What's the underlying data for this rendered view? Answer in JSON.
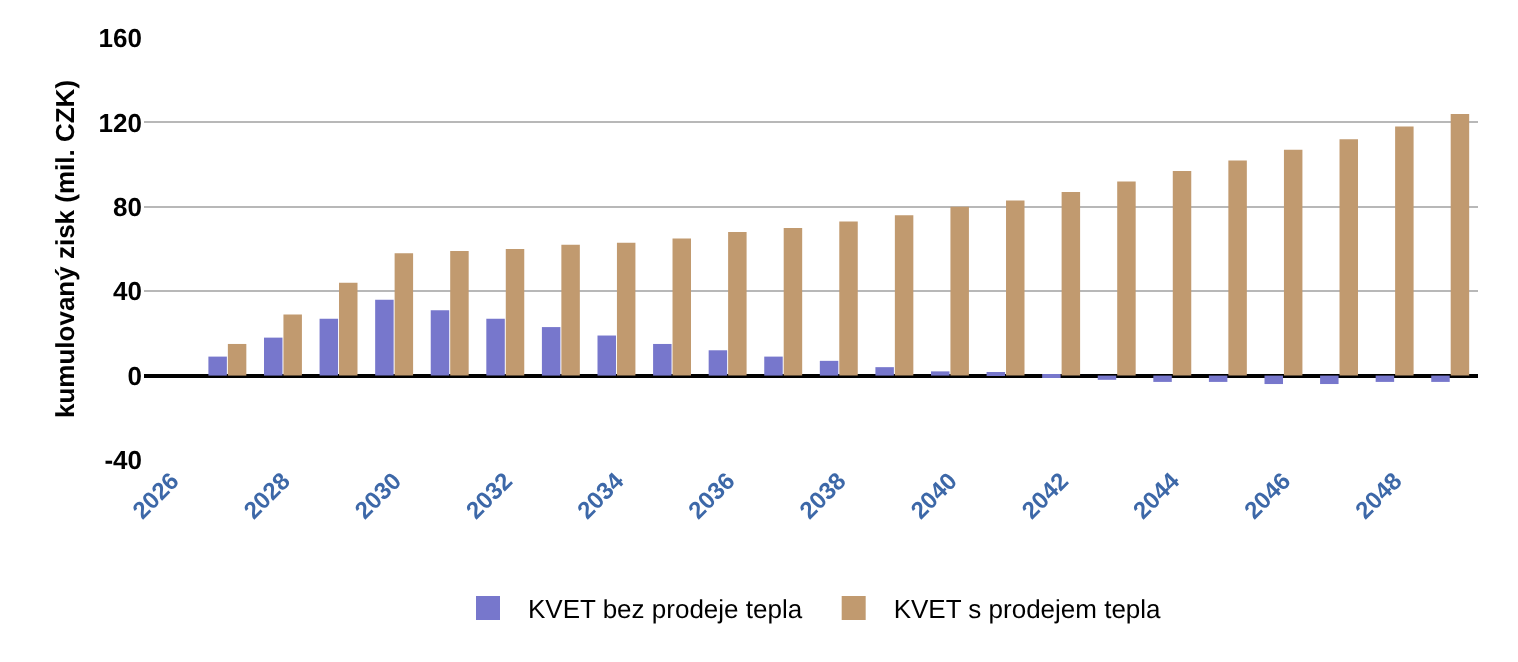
{
  "chart_data": {
    "type": "bar",
    "ylabel": "kumulovaný zisk (mil. CZK)",
    "categories": [
      "2026",
      null,
      "2028",
      null,
      "2030",
      null,
      "2032",
      null,
      "2034",
      null,
      "2036",
      null,
      "2038",
      null,
      "2040",
      null,
      "2042",
      null,
      "2044",
      null,
      "2046",
      null,
      "2048",
      null
    ],
    "series": [
      {
        "name": "KVET bez prodeje tepla",
        "color": "#7777cc",
        "values": [
          null,
          9,
          18,
          27,
          36,
          31,
          27,
          23,
          19,
          15,
          12,
          9,
          7,
          4,
          2,
          1,
          -1,
          -2,
          -3,
          -3,
          -4,
          -4,
          -3,
          -3
        ]
      },
      {
        "name": "KVET s prodejem tepla",
        "color": "#c19a6f",
        "values": [
          null,
          15,
          29,
          44,
          58,
          59,
          60,
          62,
          63,
          65,
          68,
          70,
          73,
          76,
          80,
          83,
          87,
          92,
          97,
          102,
          107,
          112,
          118,
          124
        ]
      }
    ],
    "ylim": [
      -40,
      160
    ],
    "yticks": [
      -40,
      0,
      40,
      80,
      120,
      160
    ],
    "grid": "y",
    "legend": "bottom"
  }
}
